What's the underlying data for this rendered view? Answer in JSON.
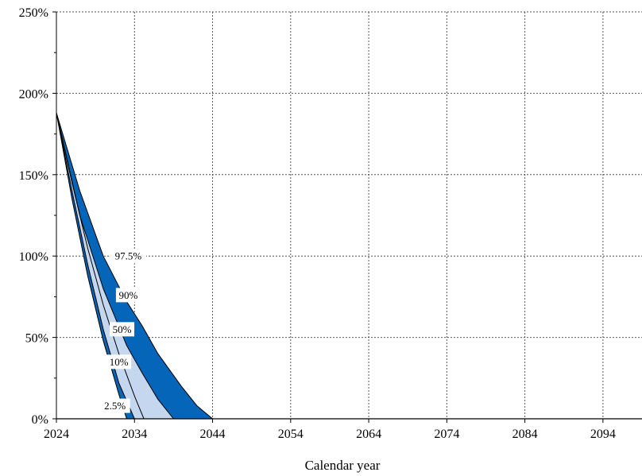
{
  "chart_data": {
    "type": "area",
    "title": "",
    "xlabel": "Calendar year",
    "ylabel": "",
    "xlim": [
      2024,
      2099
    ],
    "ylim": [
      0,
      250
    ],
    "xticks": [
      2024,
      2034,
      2044,
      2054,
      2064,
      2074,
      2084,
      2094
    ],
    "yticks": [
      0,
      50,
      100,
      150,
      200,
      250
    ],
    "ytick_suffix": "%",
    "grid": true,
    "colors": {
      "outer_band": "#0565b8",
      "inner_band": "#c5d7ef",
      "line": "#000000",
      "grid": "#555555"
    },
    "series": [
      {
        "name": "97.5%",
        "x": [
          2024,
          2027,
          2030,
          2033,
          2035,
          2037,
          2040,
          2042,
          2044
        ],
        "values": [
          188,
          140,
          100,
          72,
          57,
          40,
          20,
          8,
          0
        ]
      },
      {
        "name": "90%",
        "x": [
          2024,
          2027,
          2030,
          2033,
          2035,
          2037,
          2039
        ],
        "values": [
          188,
          125,
          80,
          45,
          28,
          12,
          0
        ]
      },
      {
        "name": "50%",
        "x": [
          2024,
          2026,
          2028,
          2030,
          2032,
          2034,
          2035.2
        ],
        "values": [
          188,
          145,
          105,
          70,
          40,
          14,
          0
        ]
      },
      {
        "name": "10%",
        "x": [
          2024,
          2026,
          2028,
          2030,
          2032,
          2034
        ],
        "values": [
          188,
          140,
          95,
          55,
          22,
          0
        ]
      },
      {
        "name": "2.5%",
        "x": [
          2024,
          2026,
          2028,
          2030,
          2032,
          2033
        ],
        "values": [
          188,
          135,
          88,
          48,
          15,
          0
        ]
      }
    ],
    "band_labels": [
      {
        "text": "97.5%",
        "x": 2033.2,
        "y": 100
      },
      {
        "text": "90%",
        "x": 2033.2,
        "y": 76
      },
      {
        "text": "50%",
        "x": 2032.4,
        "y": 55
      },
      {
        "text": "10%",
        "x": 2032.0,
        "y": 35
      },
      {
        "text": "2.5%",
        "x": 2031.5,
        "y": 8
      }
    ]
  }
}
